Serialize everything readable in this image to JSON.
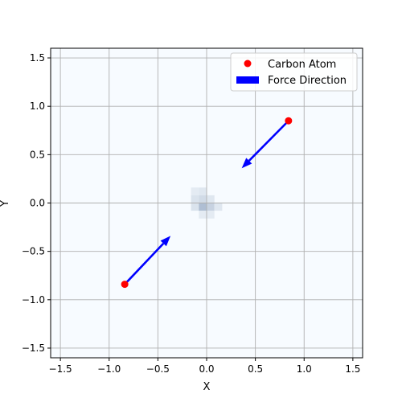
{
  "chart_data": {
    "type": "scatter",
    "title": "",
    "xlabel": "X",
    "ylabel": "Y",
    "xlim": [
      -1.6,
      1.6
    ],
    "ylim": [
      -1.6,
      1.6
    ],
    "grid": true,
    "legend_position": "top-right",
    "x_ticks": [
      "−1.5",
      "−1.0",
      "−0.5",
      "0.0",
      "0.5",
      "1.0",
      "1.5"
    ],
    "x_tick_values": [
      -1.5,
      -1.0,
      -0.5,
      0.0,
      0.5,
      1.0,
      1.5
    ],
    "y_ticks": [
      "−1.5",
      "−1.0",
      "−0.5",
      "0.0",
      "0.5",
      "1.0",
      "1.5"
    ],
    "y_tick_values": [
      -1.5,
      -1.0,
      -0.5,
      0.0,
      0.5,
      1.0,
      1.5
    ],
    "series": [
      {
        "name": "Carbon Atom",
        "type": "scatter",
        "color": "#ff0000",
        "points": [
          {
            "x": 0.84,
            "y": 0.85
          },
          {
            "x": -0.84,
            "y": -0.84
          }
        ]
      },
      {
        "name": "Force Direction",
        "type": "quiver",
        "color": "#0000ff",
        "vectors": [
          {
            "x": 0.84,
            "y": 0.85,
            "dx": -0.48,
            "dy": -0.49
          },
          {
            "x": -0.84,
            "y": -0.84,
            "dx": 0.47,
            "dy": 0.5
          }
        ]
      }
    ],
    "background_density": {
      "colormap": "Blues",
      "description_center": [
        0.0,
        -0.05
      ],
      "cells": [
        {
          "x": -0.12,
          "y": 0.12,
          "w": 0.08,
          "h": 0.08,
          "v": 0.08
        },
        {
          "x": -0.04,
          "y": 0.12,
          "w": 0.08,
          "h": 0.08,
          "v": 0.1
        },
        {
          "x": -0.12,
          "y": 0.04,
          "w": 0.08,
          "h": 0.08,
          "v": 0.12
        },
        {
          "x": -0.04,
          "y": 0.04,
          "w": 0.08,
          "h": 0.08,
          "v": 0.16
        },
        {
          "x": 0.04,
          "y": 0.04,
          "w": 0.08,
          "h": 0.08,
          "v": 0.1
        },
        {
          "x": -0.12,
          "y": -0.04,
          "w": 0.08,
          "h": 0.08,
          "v": 0.12
        },
        {
          "x": -0.04,
          "y": -0.04,
          "w": 0.08,
          "h": 0.08,
          "v": 0.3
        },
        {
          "x": 0.04,
          "y": -0.04,
          "w": 0.08,
          "h": 0.08,
          "v": 0.2
        },
        {
          "x": 0.12,
          "y": -0.04,
          "w": 0.08,
          "h": 0.08,
          "v": 0.1
        },
        {
          "x": -0.04,
          "y": -0.12,
          "w": 0.08,
          "h": 0.08,
          "v": 0.08
        },
        {
          "x": 0.04,
          "y": -0.12,
          "w": 0.08,
          "h": 0.08,
          "v": 0.08
        }
      ]
    },
    "legend": [
      {
        "label": "Carbon Atom",
        "marker": "circle",
        "color": "#ff0000"
      },
      {
        "label": "Force Direction",
        "marker": "rect",
        "color": "#0000ff"
      }
    ]
  }
}
